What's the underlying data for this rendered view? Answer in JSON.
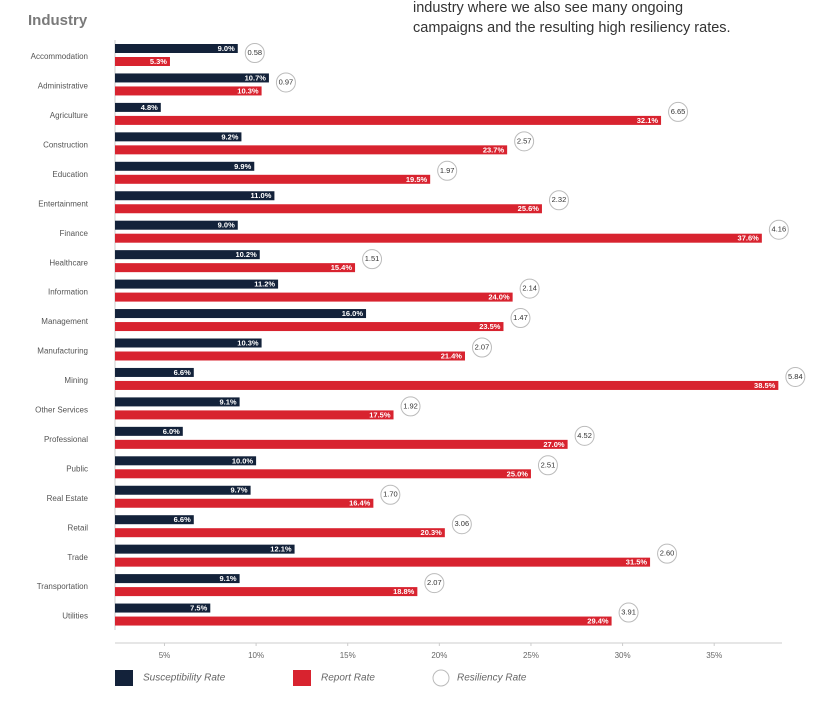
{
  "intro_lines": [
    "industry where we also see many ongoing",
    "campaigns and the resulting high resiliency rates."
  ],
  "chart_data": {
    "type": "bar",
    "orientation": "horizontal",
    "title": "Industry",
    "categories": [
      "Accommodation",
      "Administrative",
      "Agriculture",
      "Construction",
      "Education",
      "Entertainment",
      "Finance",
      "Healthcare",
      "Information",
      "Management",
      "Manufacturing",
      "Mining",
      "Other Services",
      "Professional",
      "Public",
      "Real Estate",
      "Retail",
      "Trade",
      "Transportation",
      "Utilities"
    ],
    "series": [
      {
        "name": "Susceptibility Rate",
        "color": "#13223a",
        "values": [
          9.0,
          10.7,
          4.8,
          9.2,
          9.9,
          11.0,
          9.0,
          10.2,
          11.2,
          16.0,
          10.3,
          6.6,
          9.1,
          6.0,
          10.0,
          9.7,
          6.6,
          12.1,
          9.1,
          7.5
        ],
        "value_labels": [
          "9.0%",
          "10.7%",
          "4.8%",
          "9.2%",
          "9.9%",
          "11.0%",
          "9.0%",
          "10.2%",
          "11.2%",
          "16.0%",
          "10.3%",
          "6.6%",
          "9.1%",
          "6.0%",
          "10.0%",
          "9.7%",
          "6.6%",
          "12.1%",
          "9.1%",
          "7.5%"
        ]
      },
      {
        "name": "Report Rate",
        "color": "#d8232f",
        "values": [
          5.3,
          10.3,
          32.1,
          23.7,
          19.5,
          25.6,
          37.6,
          15.4,
          24.0,
          23.5,
          21.4,
          38.5,
          17.5,
          27.0,
          25.0,
          16.4,
          20.3,
          31.5,
          18.8,
          29.4
        ],
        "value_labels": [
          "5.3%",
          "10.3%",
          "32.1%",
          "23.7%",
          "19.5%",
          "25.6%",
          "37.6%",
          "15.4%",
          "24.0%",
          "23.5%",
          "21.4%",
          "38.5%",
          "17.5%",
          "27.0%",
          "25.0%",
          "16.4%",
          "20.3%",
          "31.5%",
          "18.8%",
          "29.4%"
        ]
      },
      {
        "name": "Resiliency Rate",
        "color": "#bbbbbb",
        "values": [
          0.58,
          0.97,
          6.65,
          2.57,
          1.97,
          2.32,
          4.16,
          1.51,
          2.14,
          1.47,
          2.07,
          5.84,
          1.92,
          4.52,
          2.51,
          1.7,
          3.06,
          2.6,
          2.07,
          3.91
        ],
        "value_labels": [
          "0.58",
          "0.97",
          "6.65",
          "2.57",
          "1.97",
          "2.32",
          "4.16",
          "1.51",
          "2.14",
          "1.47",
          "2.07",
          "5.84",
          "1.92",
          "4.52",
          "2.51",
          "1.70",
          "3.06",
          "2.60",
          "2.07",
          "3.91"
        ]
      }
    ],
    "xlim": [
      2.3,
      38.7
    ],
    "xticks": [
      {
        "value": 5,
        "label": "5%"
      },
      {
        "value": 10,
        "label": "10%"
      },
      {
        "value": 15,
        "label": "15%"
      },
      {
        "value": 20,
        "label": "20%"
      },
      {
        "value": 25,
        "label": "25%"
      },
      {
        "value": 30,
        "label": "30%"
      },
      {
        "value": 35,
        "label": "35%"
      }
    ],
    "legend": "bottom"
  }
}
